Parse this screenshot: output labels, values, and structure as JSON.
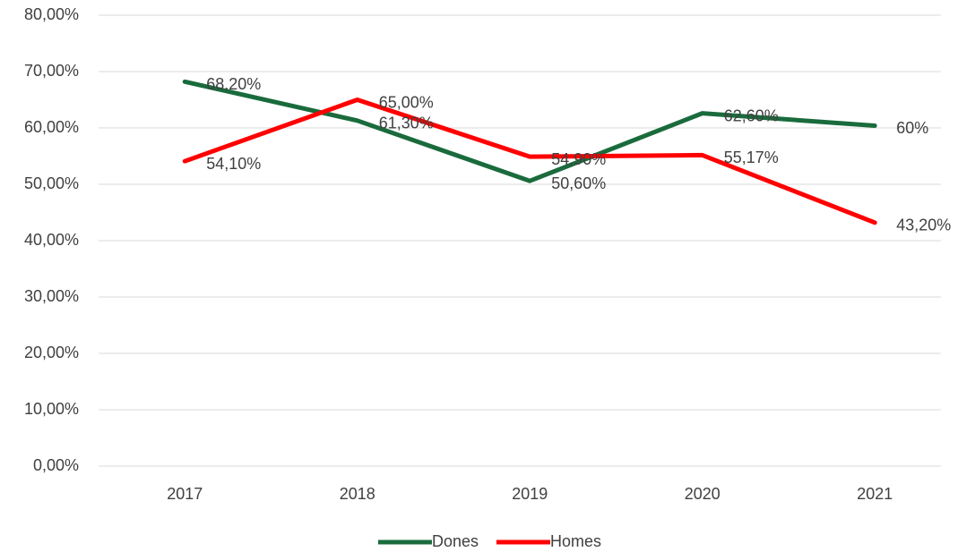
{
  "chart_data": {
    "type": "line",
    "categories": [
      "2017",
      "2018",
      "2019",
      "2020",
      "2021"
    ],
    "series": [
      {
        "name": "Dones",
        "color": "#1a6b3c",
        "values": [
          68.2,
          61.3,
          50.6,
          62.6,
          60.4
        ],
        "value_labels": [
          "68,20%",
          "61,30%",
          "50,60%",
          "62,60%",
          "60%"
        ]
      },
      {
        "name": "Homes",
        "color": "#ff0000",
        "values": [
          54.1,
          65.0,
          54.9,
          55.17,
          43.2
        ],
        "value_labels": [
          "54,10%",
          "65,00%",
          "54,90%",
          "55,17%",
          "43,20%"
        ]
      }
    ],
    "ylim": [
      0,
      80
    ],
    "yticks": [
      {
        "value": 0,
        "label": "0,00%"
      },
      {
        "value": 10,
        "label": "10,00%"
      },
      {
        "value": 20,
        "label": "20,00%"
      },
      {
        "value": 30,
        "label": "30,00%"
      },
      {
        "value": 40,
        "label": "40,00%"
      },
      {
        "value": 50,
        "label": "50,00%"
      },
      {
        "value": 60,
        "label": "60,00%"
      },
      {
        "value": 70,
        "label": "70,00%"
      },
      {
        "value": 80,
        "label": "80,00%"
      }
    ],
    "grid": true,
    "legend": "bottom"
  }
}
